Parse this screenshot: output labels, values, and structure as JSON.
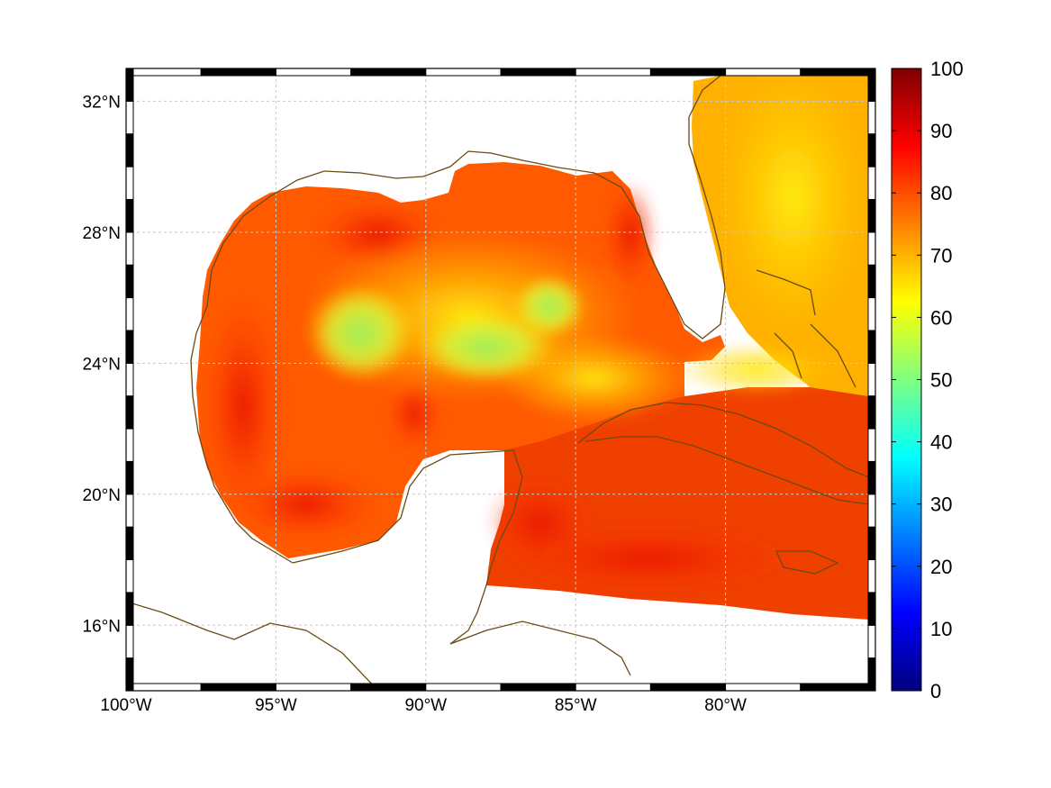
{
  "map": {
    "lon_range": [
      -100,
      -75
    ],
    "lat_range": [
      14,
      33
    ],
    "x_ticks": [
      {
        "value": -100,
        "label": "100°W"
      },
      {
        "value": -95,
        "label": "95°W"
      },
      {
        "value": -90,
        "label": "90°W"
      },
      {
        "value": -85,
        "label": "85°W"
      },
      {
        "value": -80,
        "label": "80°W"
      }
    ],
    "y_ticks": [
      {
        "value": 32,
        "label": "32°N"
      },
      {
        "value": 28,
        "label": "28°N"
      },
      {
        "value": 24,
        "label": "24°N"
      },
      {
        "value": 20,
        "label": "20°N"
      },
      {
        "value": 16,
        "label": "16°N"
      }
    ],
    "grid": true,
    "coastline_color": "#6b4a14",
    "colormap": "jet"
  },
  "colorbar": {
    "min": 0,
    "max": 100,
    "ticks": [
      "0",
      "10",
      "20",
      "30",
      "40",
      "50",
      "60",
      "70",
      "80",
      "90",
      "100"
    ]
  }
}
